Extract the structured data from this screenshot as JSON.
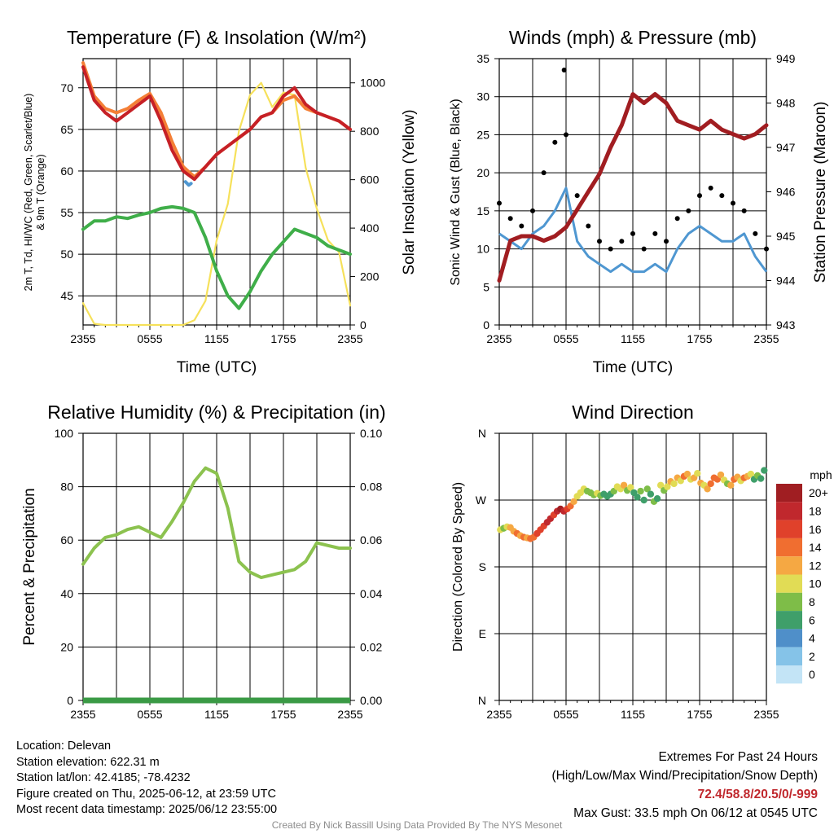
{
  "chart_data": [
    {
      "type": "line",
      "title": "Temperature (F) & Insolation (W/m²)",
      "xlabel": "Time (UTC)",
      "ylabel": "2m T, Td, HI/WC (Red, Green, Scarlet/Blue) & 9m T (Orange)",
      "y2label": "Solar Insolation (Yellow)",
      "x_ticks": [
        "2355",
        "0555",
        "1155",
        "1755",
        "2355"
      ],
      "ylim": [
        41.5,
        73.5
      ],
      "y_ticks": [
        45,
        50,
        55,
        60,
        65,
        70
      ],
      "y2lim": [
        0,
        1100
      ],
      "y2_ticks": [
        0,
        200,
        400,
        600,
        800,
        1000
      ],
      "grid": true,
      "x_hours": [
        0,
        1,
        2,
        3,
        4,
        5,
        6,
        7,
        8,
        9,
        10,
        11,
        12,
        13,
        14,
        15,
        16,
        17,
        18,
        19,
        20,
        21,
        22,
        23,
        24
      ],
      "series": [
        {
          "name": "2m T",
          "color": "#c62026",
          "axis": "left",
          "values": [
            72.5,
            68.5,
            67.0,
            66.0,
            67.0,
            68.0,
            69.0,
            66.0,
            62.5,
            60.0,
            59.0,
            60.5,
            62.0,
            63.0,
            64.0,
            65.0,
            66.5,
            67.0,
            69.0,
            70.0,
            68.0,
            67.0,
            66.5,
            66.0,
            65.0
          ]
        },
        {
          "name": "9m T",
          "color": "#f47f36",
          "axis": "left",
          "values": [
            73.0,
            69.0,
            67.5,
            67.0,
            67.5,
            68.5,
            69.3,
            67.0,
            63.5,
            60.5,
            59.3,
            60.5,
            62.0,
            63.0,
            64.0,
            65.0,
            66.5,
            67.0,
            68.5,
            69.0,
            67.5,
            67.0,
            66.5,
            66.0,
            65.0
          ]
        },
        {
          "name": "HI/WC",
          "color": "#4f97d1",
          "axis": "left",
          "x": [
            9.2,
            9.5,
            9.7
          ],
          "values": [
            58.7,
            58.3,
            58.5
          ],
          "note_gaps": true
        },
        {
          "name": "Td",
          "color": "#3fae49",
          "axis": "left",
          "values": [
            53.0,
            54.0,
            54.0,
            54.5,
            54.3,
            54.7,
            55.0,
            55.5,
            55.7,
            55.5,
            55.0,
            52.0,
            48.0,
            45.0,
            43.5,
            45.5,
            48.0,
            50.0,
            51.5,
            53.0,
            52.5,
            52.0,
            51.0,
            50.5,
            50.0
          ]
        },
        {
          "name": "Solar Insolation",
          "color": "#f6e15b",
          "axis": "right",
          "values": [
            90,
            5,
            0,
            0,
            0,
            0,
            0,
            0,
            0,
            0,
            20,
            100,
            350,
            500,
            800,
            950,
            1000,
            900,
            960,
            950,
            650,
            480,
            350,
            300,
            80
          ]
        }
      ]
    },
    {
      "type": "line",
      "title": "Winds (mph) & Pressure (mb)",
      "xlabel": "Time (UTC)",
      "ylabel": "Sonic Wind & Gust (Blue, Black)",
      "y2label": "Station Pressure (Maroon)",
      "x_ticks": [
        "2355",
        "0555",
        "1155",
        "1755",
        "2355"
      ],
      "ylim": [
        0,
        35
      ],
      "y_ticks": [
        0,
        5,
        10,
        15,
        20,
        25,
        30,
        35
      ],
      "y2lim": [
        943,
        949
      ],
      "y2_ticks": [
        943,
        944,
        945,
        946,
        947,
        948,
        949
      ],
      "grid": true,
      "x_hours": [
        0,
        1,
        2,
        3,
        4,
        5,
        6,
        7,
        8,
        9,
        10,
        11,
        12,
        13,
        14,
        15,
        16,
        17,
        18,
        19,
        20,
        21,
        22,
        23,
        24
      ],
      "series": [
        {
          "name": "Sonic Wind",
          "color": "#4f97d1",
          "axis": "left",
          "values": [
            12,
            11,
            10,
            12,
            13,
            15,
            18,
            11,
            9,
            8,
            7,
            8,
            7,
            7,
            8,
            7,
            10,
            12,
            13,
            12,
            11,
            11,
            12,
            9,
            7
          ]
        },
        {
          "name": "Gust",
          "color": "#000000",
          "axis": "left",
          "style": "points",
          "values": [
            16,
            14,
            13,
            15,
            20,
            24,
            25,
            17,
            13,
            11,
            10,
            11,
            12,
            10,
            12,
            11,
            14,
            15,
            17,
            18,
            17,
            16,
            15,
            12,
            10
          ]
        },
        {
          "name": "Station Pressure",
          "color": "#a11d21",
          "axis": "right",
          "values": [
            944.0,
            944.9,
            945.0,
            945.0,
            944.9,
            945.0,
            945.2,
            945.6,
            946.0,
            946.4,
            947.0,
            947.5,
            948.2,
            948.0,
            948.2,
            948.0,
            947.6,
            947.5,
            947.4,
            947.6,
            947.4,
            947.3,
            947.2,
            947.3,
            947.5
          ]
        }
      ],
      "max_gust": {
        "x_hour": 5.83,
        "value": 33.5
      }
    },
    {
      "type": "line",
      "title": "Relative Humidity (%) & Precipitation (in)",
      "xlabel": "",
      "ylabel": "Percent & Precipitation",
      "x_ticks": [
        "2355",
        "0555",
        "1155",
        "1755",
        "2355"
      ],
      "ylim": [
        0,
        100
      ],
      "y_ticks": [
        0,
        20,
        40,
        60,
        80,
        100
      ],
      "y2lim": [
        0,
        0.1
      ],
      "y2_ticks": [
        "0.00",
        "0.02",
        "0.04",
        "0.06",
        "0.08",
        "0.10"
      ],
      "grid": true,
      "x_hours": [
        0,
        1,
        2,
        3,
        4,
        5,
        6,
        7,
        8,
        9,
        10,
        11,
        12,
        13,
        14,
        15,
        16,
        17,
        18,
        19,
        20,
        21,
        22,
        23,
        24
      ],
      "series": [
        {
          "name": "Relative Humidity",
          "color": "#8cc24f",
          "axis": "left",
          "values": [
            51,
            57,
            61,
            62,
            64,
            65,
            63,
            61,
            67,
            74,
            82,
            87,
            85,
            72,
            52,
            48,
            46,
            47,
            48,
            49,
            52,
            59,
            58,
            57,
            57
          ]
        },
        {
          "name": "Precipitation",
          "color": "#3a9a45",
          "axis": "right",
          "values": [
            0,
            0,
            0,
            0,
            0,
            0,
            0,
            0,
            0,
            0,
            0,
            0,
            0,
            0,
            0,
            0,
            0,
            0,
            0,
            0,
            0,
            0,
            0,
            0,
            0
          ]
        }
      ]
    },
    {
      "type": "scatter",
      "title": "Wind Direction",
      "xlabel": "",
      "ylabel": "Direction (Colored By Speed)",
      "x_ticks": [
        "2355",
        "0555",
        "1155",
        "1755",
        "2355"
      ],
      "y_ticks": [
        "N",
        "E",
        "S",
        "W",
        "N"
      ],
      "ylim": [
        0,
        360
      ],
      "grid": true,
      "legend_title": "mph",
      "legend_labels": [
        "0",
        "2",
        "4",
        "6",
        "8",
        "10",
        "12",
        "14",
        "16",
        "18",
        "20+"
      ],
      "legend_colors": [
        "#c3e4f6",
        "#85c3e8",
        "#4f8fc9",
        "#3f9f6a",
        "#7ebd48",
        "#e1dc55",
        "#f5a843",
        "#f06e30",
        "#e0412b",
        "#c0282d",
        "#a01e22"
      ],
      "points": [
        {
          "x": 0.1,
          "dir": 230,
          "spd": 10
        },
        {
          "x": 0.4,
          "dir": 232,
          "spd": 8
        },
        {
          "x": 0.7,
          "dir": 234,
          "spd": 10
        },
        {
          "x": 1.0,
          "dir": 233,
          "spd": 12
        },
        {
          "x": 1.3,
          "dir": 228,
          "spd": 12
        },
        {
          "x": 1.6,
          "dir": 225,
          "spd": 13
        },
        {
          "x": 1.9,
          "dir": 222,
          "spd": 12
        },
        {
          "x": 2.2,
          "dir": 220,
          "spd": 13
        },
        {
          "x": 2.5,
          "dir": 219,
          "spd": 12
        },
        {
          "x": 2.8,
          "dir": 218,
          "spd": 14
        },
        {
          "x": 3.1,
          "dir": 220,
          "spd": 13
        },
        {
          "x": 3.4,
          "dir": 225,
          "spd": 15
        },
        {
          "x": 3.7,
          "dir": 230,
          "spd": 15
        },
        {
          "x": 4.0,
          "dir": 235,
          "spd": 16
        },
        {
          "x": 4.3,
          "dir": 240,
          "spd": 17
        },
        {
          "x": 4.6,
          "dir": 245,
          "spd": 18
        },
        {
          "x": 4.9,
          "dir": 250,
          "spd": 16
        },
        {
          "x": 5.2,
          "dir": 255,
          "spd": 17
        },
        {
          "x": 5.5,
          "dir": 258,
          "spd": 19
        },
        {
          "x": 5.8,
          "dir": 255,
          "spd": 18
        },
        {
          "x": 6.1,
          "dir": 258,
          "spd": 15
        },
        {
          "x": 6.4,
          "dir": 262,
          "spd": 13
        },
        {
          "x": 6.7,
          "dir": 268,
          "spd": 12
        },
        {
          "x": 7.0,
          "dir": 275,
          "spd": 10
        },
        {
          "x": 7.3,
          "dir": 280,
          "spd": 9
        },
        {
          "x": 7.6,
          "dir": 285,
          "spd": 10
        },
        {
          "x": 7.9,
          "dir": 282,
          "spd": 8
        },
        {
          "x": 8.2,
          "dir": 280,
          "spd": 7
        },
        {
          "x": 8.5,
          "dir": 277,
          "spd": 8
        },
        {
          "x": 8.8,
          "dir": 279,
          "spd": 9
        },
        {
          "x": 9.1,
          "dir": 276,
          "spd": 7
        },
        {
          "x": 9.4,
          "dir": 278,
          "spd": 6
        },
        {
          "x": 9.7,
          "dir": 275,
          "spd": 5
        },
        {
          "x": 10.0,
          "dir": 278,
          "spd": 6
        },
        {
          "x": 10.3,
          "dir": 282,
          "spd": 7
        },
        {
          "x": 10.6,
          "dir": 288,
          "spd": 9
        },
        {
          "x": 10.9,
          "dir": 285,
          "spd": 10
        },
        {
          "x": 11.2,
          "dir": 290,
          "spd": 11
        },
        {
          "x": 11.5,
          "dir": 283,
          "spd": 8
        },
        {
          "x": 11.8,
          "dir": 287,
          "spd": 10
        },
        {
          "x": 12.1,
          "dir": 280,
          "spd": 6
        },
        {
          "x": 12.4,
          "dir": 274,
          "spd": 5
        },
        {
          "x": 12.7,
          "dir": 282,
          "spd": 7
        },
        {
          "x": 13.0,
          "dir": 270,
          "spd": 6
        },
        {
          "x": 13.3,
          "dir": 285,
          "spd": 8
        },
        {
          "x": 13.6,
          "dir": 278,
          "spd": 6
        },
        {
          "x": 13.9,
          "dir": 268,
          "spd": 7
        },
        {
          "x": 14.2,
          "dir": 272,
          "spd": 6
        },
        {
          "x": 14.5,
          "dir": 290,
          "spd": 9
        },
        {
          "x": 14.8,
          "dir": 283,
          "spd": 8
        },
        {
          "x": 15.1,
          "dir": 288,
          "spd": 10
        },
        {
          "x": 15.4,
          "dir": 295,
          "spd": 11
        },
        {
          "x": 15.7,
          "dir": 292,
          "spd": 9
        },
        {
          "x": 16.0,
          "dir": 300,
          "spd": 12
        },
        {
          "x": 16.3,
          "dir": 296,
          "spd": 10
        },
        {
          "x": 16.6,
          "dir": 302,
          "spd": 13
        },
        {
          "x": 16.9,
          "dir": 305,
          "spd": 12
        },
        {
          "x": 17.2,
          "dir": 298,
          "spd": 9
        },
        {
          "x": 17.5,
          "dir": 300,
          "spd": 11
        },
        {
          "x": 17.8,
          "dir": 306,
          "spd": 10
        },
        {
          "x": 18.1,
          "dir": 293,
          "spd": 12
        },
        {
          "x": 18.4,
          "dir": 290,
          "spd": 10
        },
        {
          "x": 18.7,
          "dir": 285,
          "spd": 12
        },
        {
          "x": 19.0,
          "dir": 292,
          "spd": 13
        },
        {
          "x": 19.3,
          "dir": 300,
          "spd": 14
        },
        {
          "x": 19.6,
          "dir": 298,
          "spd": 13
        },
        {
          "x": 19.9,
          "dir": 304,
          "spd": 12
        },
        {
          "x": 20.2,
          "dir": 297,
          "spd": 9
        },
        {
          "x": 20.5,
          "dir": 292,
          "spd": 8
        },
        {
          "x": 20.8,
          "dir": 290,
          "spd": 12
        },
        {
          "x": 21.1,
          "dir": 298,
          "spd": 13
        },
        {
          "x": 21.4,
          "dir": 301,
          "spd": 12
        },
        {
          "x": 21.7,
          "dir": 296,
          "spd": 10
        },
        {
          "x": 22.0,
          "dir": 300,
          "spd": 13
        },
        {
          "x": 22.3,
          "dir": 302,
          "spd": 11
        },
        {
          "x": 22.6,
          "dir": 305,
          "spd": 9
        },
        {
          "x": 22.9,
          "dir": 298,
          "spd": 6
        },
        {
          "x": 23.2,
          "dir": 303,
          "spd": 7
        },
        {
          "x": 23.5,
          "dir": 299,
          "spd": 6
        },
        {
          "x": 23.8,
          "dir": 310,
          "spd": 6
        }
      ]
    }
  ],
  "station": {
    "location": "Location: Delevan",
    "elevation": "Station elevation: 622.31 m",
    "latlon": "Station lat/lon: 42.4185; -78.4232",
    "created": "Figure created on Thu, 2025-06-12, at 23:59 UTC",
    "recent": "Most recent data timestamp: 2025/06/12 23:55:00"
  },
  "extremes": {
    "title": "Extremes For Past 24 Hours",
    "subtitle": "(High/Low/Max Wind/Precipitation/Snow Depth)",
    "values": "72.4/58.8/20.5/0/-999",
    "max_gust": "Max Gust: 33.5 mph On 06/12 at 0545 UTC"
  },
  "credit": "Created By Nick Bassill Using Data Provided By The NYS Mesonet"
}
